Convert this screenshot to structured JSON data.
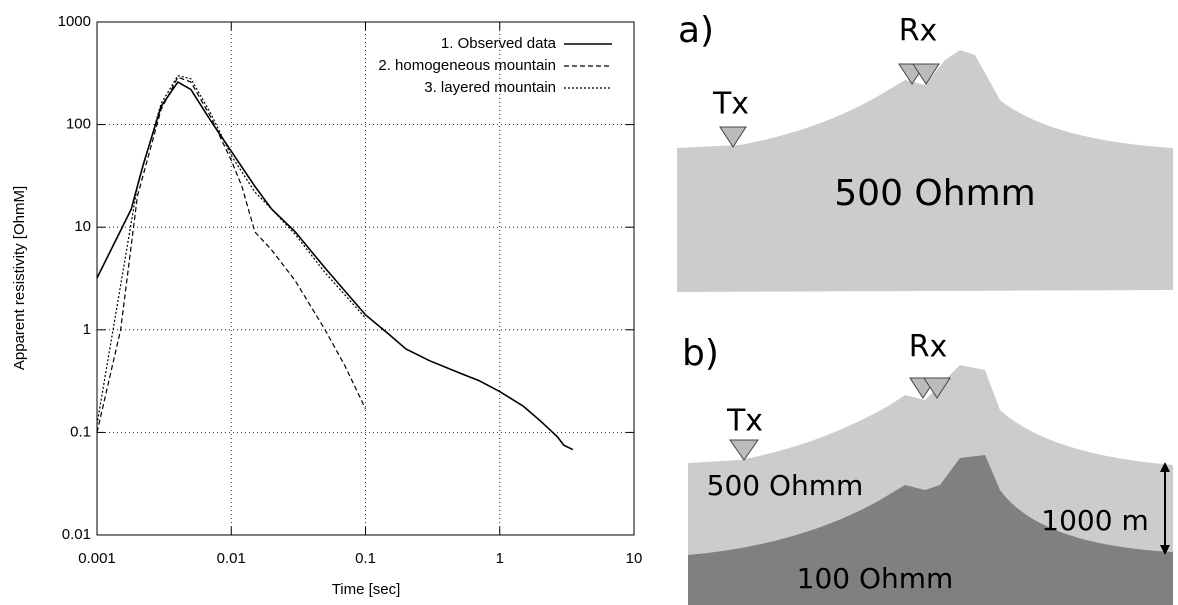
{
  "chart_data": {
    "type": "line",
    "xlabel": "Time [sec]",
    "ylabel": "Apparent resistivity [OhmM]",
    "xscale": "log",
    "yscale": "log",
    "grid": true,
    "legend": "top-right",
    "xlim": [
      0.001,
      10
    ],
    "xticks": [
      0.001,
      0.01,
      0.1,
      1,
      10
    ],
    "ylim": [
      0.01,
      1000
    ],
    "yticks": [
      0.01,
      0.1,
      1,
      10,
      100,
      1000
    ],
    "series": [
      {
        "name": "1. Observed data",
        "color": "#000000",
        "line_style": "solid",
        "x": [
          0.001,
          0.0018,
          0.0022,
          0.003,
          0.004,
          0.005,
          0.007,
          0.01,
          0.015,
          0.02,
          0.03,
          0.05,
          0.07,
          0.1,
          0.15,
          0.2,
          0.3,
          0.5,
          0.7,
          1,
          1.5,
          2,
          2.7,
          3,
          3.5
        ],
        "values": [
          3.2,
          15,
          40,
          150,
          260,
          220,
          110,
          55,
          25,
          15,
          9,
          4,
          2.4,
          1.4,
          0.9,
          0.65,
          0.5,
          0.38,
          0.32,
          0.25,
          0.18,
          0.13,
          0.09,
          0.075,
          0.068
        ]
      },
      {
        "name": "2. homogeneous mountain",
        "color": "#000000",
        "line_style": "dashed",
        "x": [
          0.001,
          0.0015,
          0.002,
          0.003,
          0.004,
          0.005,
          0.007,
          0.01,
          0.012,
          0.015,
          0.02,
          0.03,
          0.05,
          0.07,
          0.1
        ],
        "values": [
          0.1,
          1,
          20,
          140,
          290,
          260,
          120,
          45,
          25,
          9,
          6,
          3,
          1,
          0.45,
          0.17
        ]
      },
      {
        "name": "3. layered mountain",
        "color": "#000000",
        "line_style": "dotted",
        "x": [
          0.001,
          0.002,
          0.003,
          0.004,
          0.005,
          0.007,
          0.01,
          0.015,
          0.02,
          0.03,
          0.05,
          0.07,
          0.1
        ],
        "values": [
          0.12,
          25,
          160,
          300,
          280,
          130,
          50,
          22,
          15,
          8.5,
          3.6,
          2.2,
          1.3
        ]
      }
    ]
  },
  "diagram": {
    "a": {
      "label": "a)",
      "rx": "Rx",
      "tx": "Tx",
      "layer": "500 Ohmm"
    },
    "b": {
      "label": "b)",
      "rx": "Rx",
      "tx": "Tx",
      "upper_layer": "500 Ohmm",
      "depth": "1000 m",
      "lower_layer": "100 Ohmm"
    }
  }
}
